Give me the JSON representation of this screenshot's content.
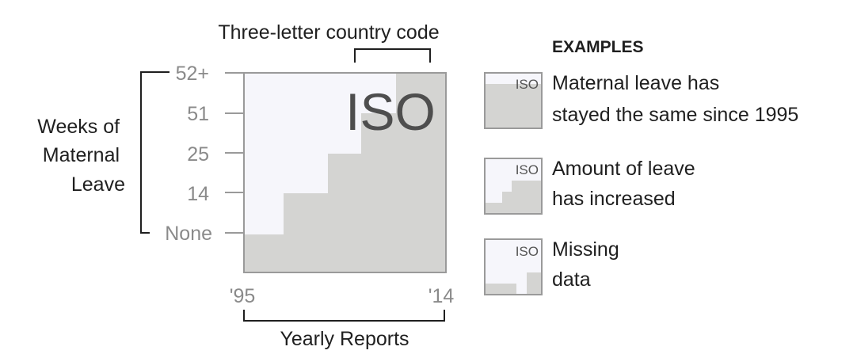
{
  "top_label": "Three-letter country code",
  "y_axis": {
    "title_lines": [
      "Weeks of",
      "Maternal",
      "Leave"
    ],
    "ticks": [
      "52+",
      "51",
      "25",
      "14",
      "None"
    ]
  },
  "x_axis": {
    "start_label": "'95",
    "end_label": "'14",
    "title": "Yearly Reports"
  },
  "main_iso_label": "ISO",
  "colors": {
    "background": "#f6f6fb",
    "fill": "#d4d4d2",
    "border": "#9a9a9a",
    "bracket": "#1f1f1f",
    "tick_text": "#8a8a8a"
  },
  "examples": {
    "heading": "EXAMPLES",
    "items": [
      {
        "iso": "ISO",
        "lines": [
          "Maternal leave has",
          "stayed the same since 1995"
        ]
      },
      {
        "iso": "ISO",
        "lines": [
          "Amount of leave",
          "has increased"
        ]
      },
      {
        "iso": "ISO",
        "lines": [
          "Missing",
          "data"
        ]
      }
    ]
  }
}
